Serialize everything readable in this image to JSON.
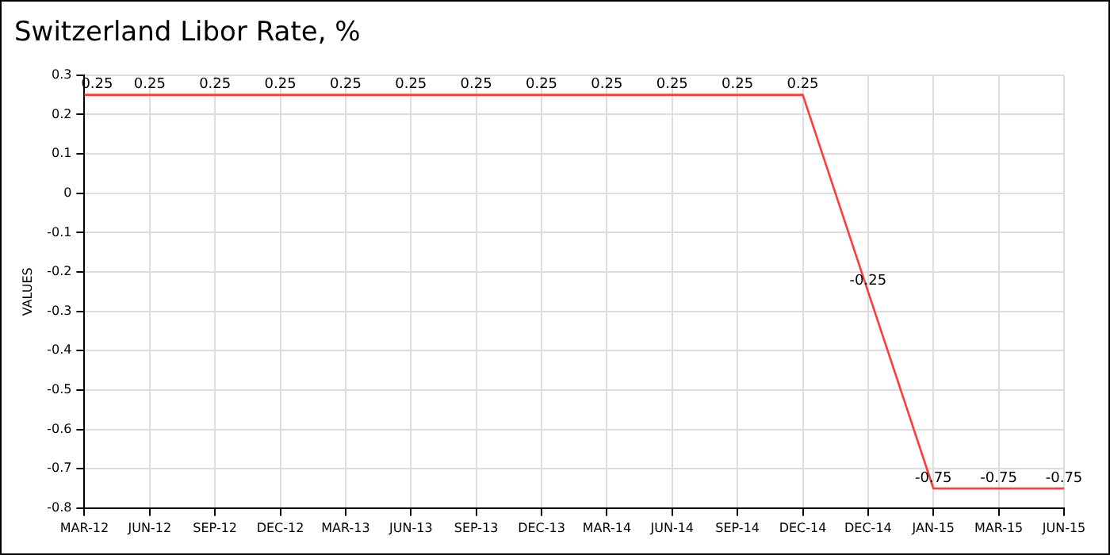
{
  "chart_data": {
    "type": "line",
    "title": "Switzerland Libor Rate, %",
    "ylabel": "VALUES",
    "categories": [
      "MAR-12",
      "JUN-12",
      "SEP-12",
      "DEC-12",
      "MAR-13",
      "JUN-13",
      "SEP-13",
      "DEC-13",
      "MAR-14",
      "JUN-14",
      "SEP-14",
      "DEC-14",
      "DEC-14",
      "JAN-15",
      "MAR-15",
      "JUN-15"
    ],
    "series": [
      {
        "color": "#ff3b3b",
        "values": [
          0.25,
          0.25,
          0.25,
          0.25,
          0.25,
          0.25,
          0.25,
          0.25,
          0.25,
          0.25,
          0.25,
          0.25,
          -0.25,
          -0.75,
          -0.75,
          -0.75
        ]
      }
    ],
    "ylim": [
      -0.8,
      0.3
    ],
    "yticks": [
      -0.8,
      -0.7,
      -0.6,
      -0.5,
      -0.4,
      -0.3,
      -0.2,
      -0.1,
      0,
      0.1,
      0.2,
      0.3
    ],
    "grid": true,
    "legend": false,
    "data_labels": true,
    "marker": "none",
    "line_style": "solid"
  }
}
